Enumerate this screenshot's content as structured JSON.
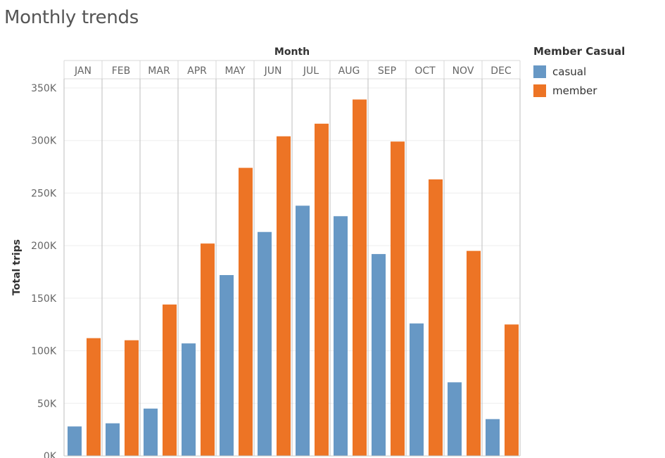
{
  "title": "Monthly trends",
  "chart_data": {
    "type": "bar",
    "xlabel": "Month",
    "ylabel": "Total trips",
    "categories": [
      "JAN",
      "FEB",
      "MAR",
      "APR",
      "MAY",
      "JUN",
      "JUL",
      "AUG",
      "SEP",
      "OCT",
      "NOV",
      "DEC"
    ],
    "yticks": [
      "0K",
      "50K",
      "100K",
      "150K",
      "200K",
      "250K",
      "300K",
      "350K"
    ],
    "ylim": [
      0,
      355000
    ],
    "legend_title": "Member Casual",
    "legend_position": "right",
    "grid": true,
    "series": [
      {
        "name": "casual",
        "color": "#6798c5",
        "values": [
          28000,
          31000,
          45000,
          107000,
          172000,
          213000,
          238000,
          228000,
          192000,
          126000,
          70000,
          35000
        ]
      },
      {
        "name": "member",
        "color": "#ed7425",
        "values": [
          112000,
          110000,
          144000,
          202000,
          274000,
          304000,
          316000,
          339000,
          299000,
          263000,
          195000,
          125000
        ]
      }
    ]
  }
}
